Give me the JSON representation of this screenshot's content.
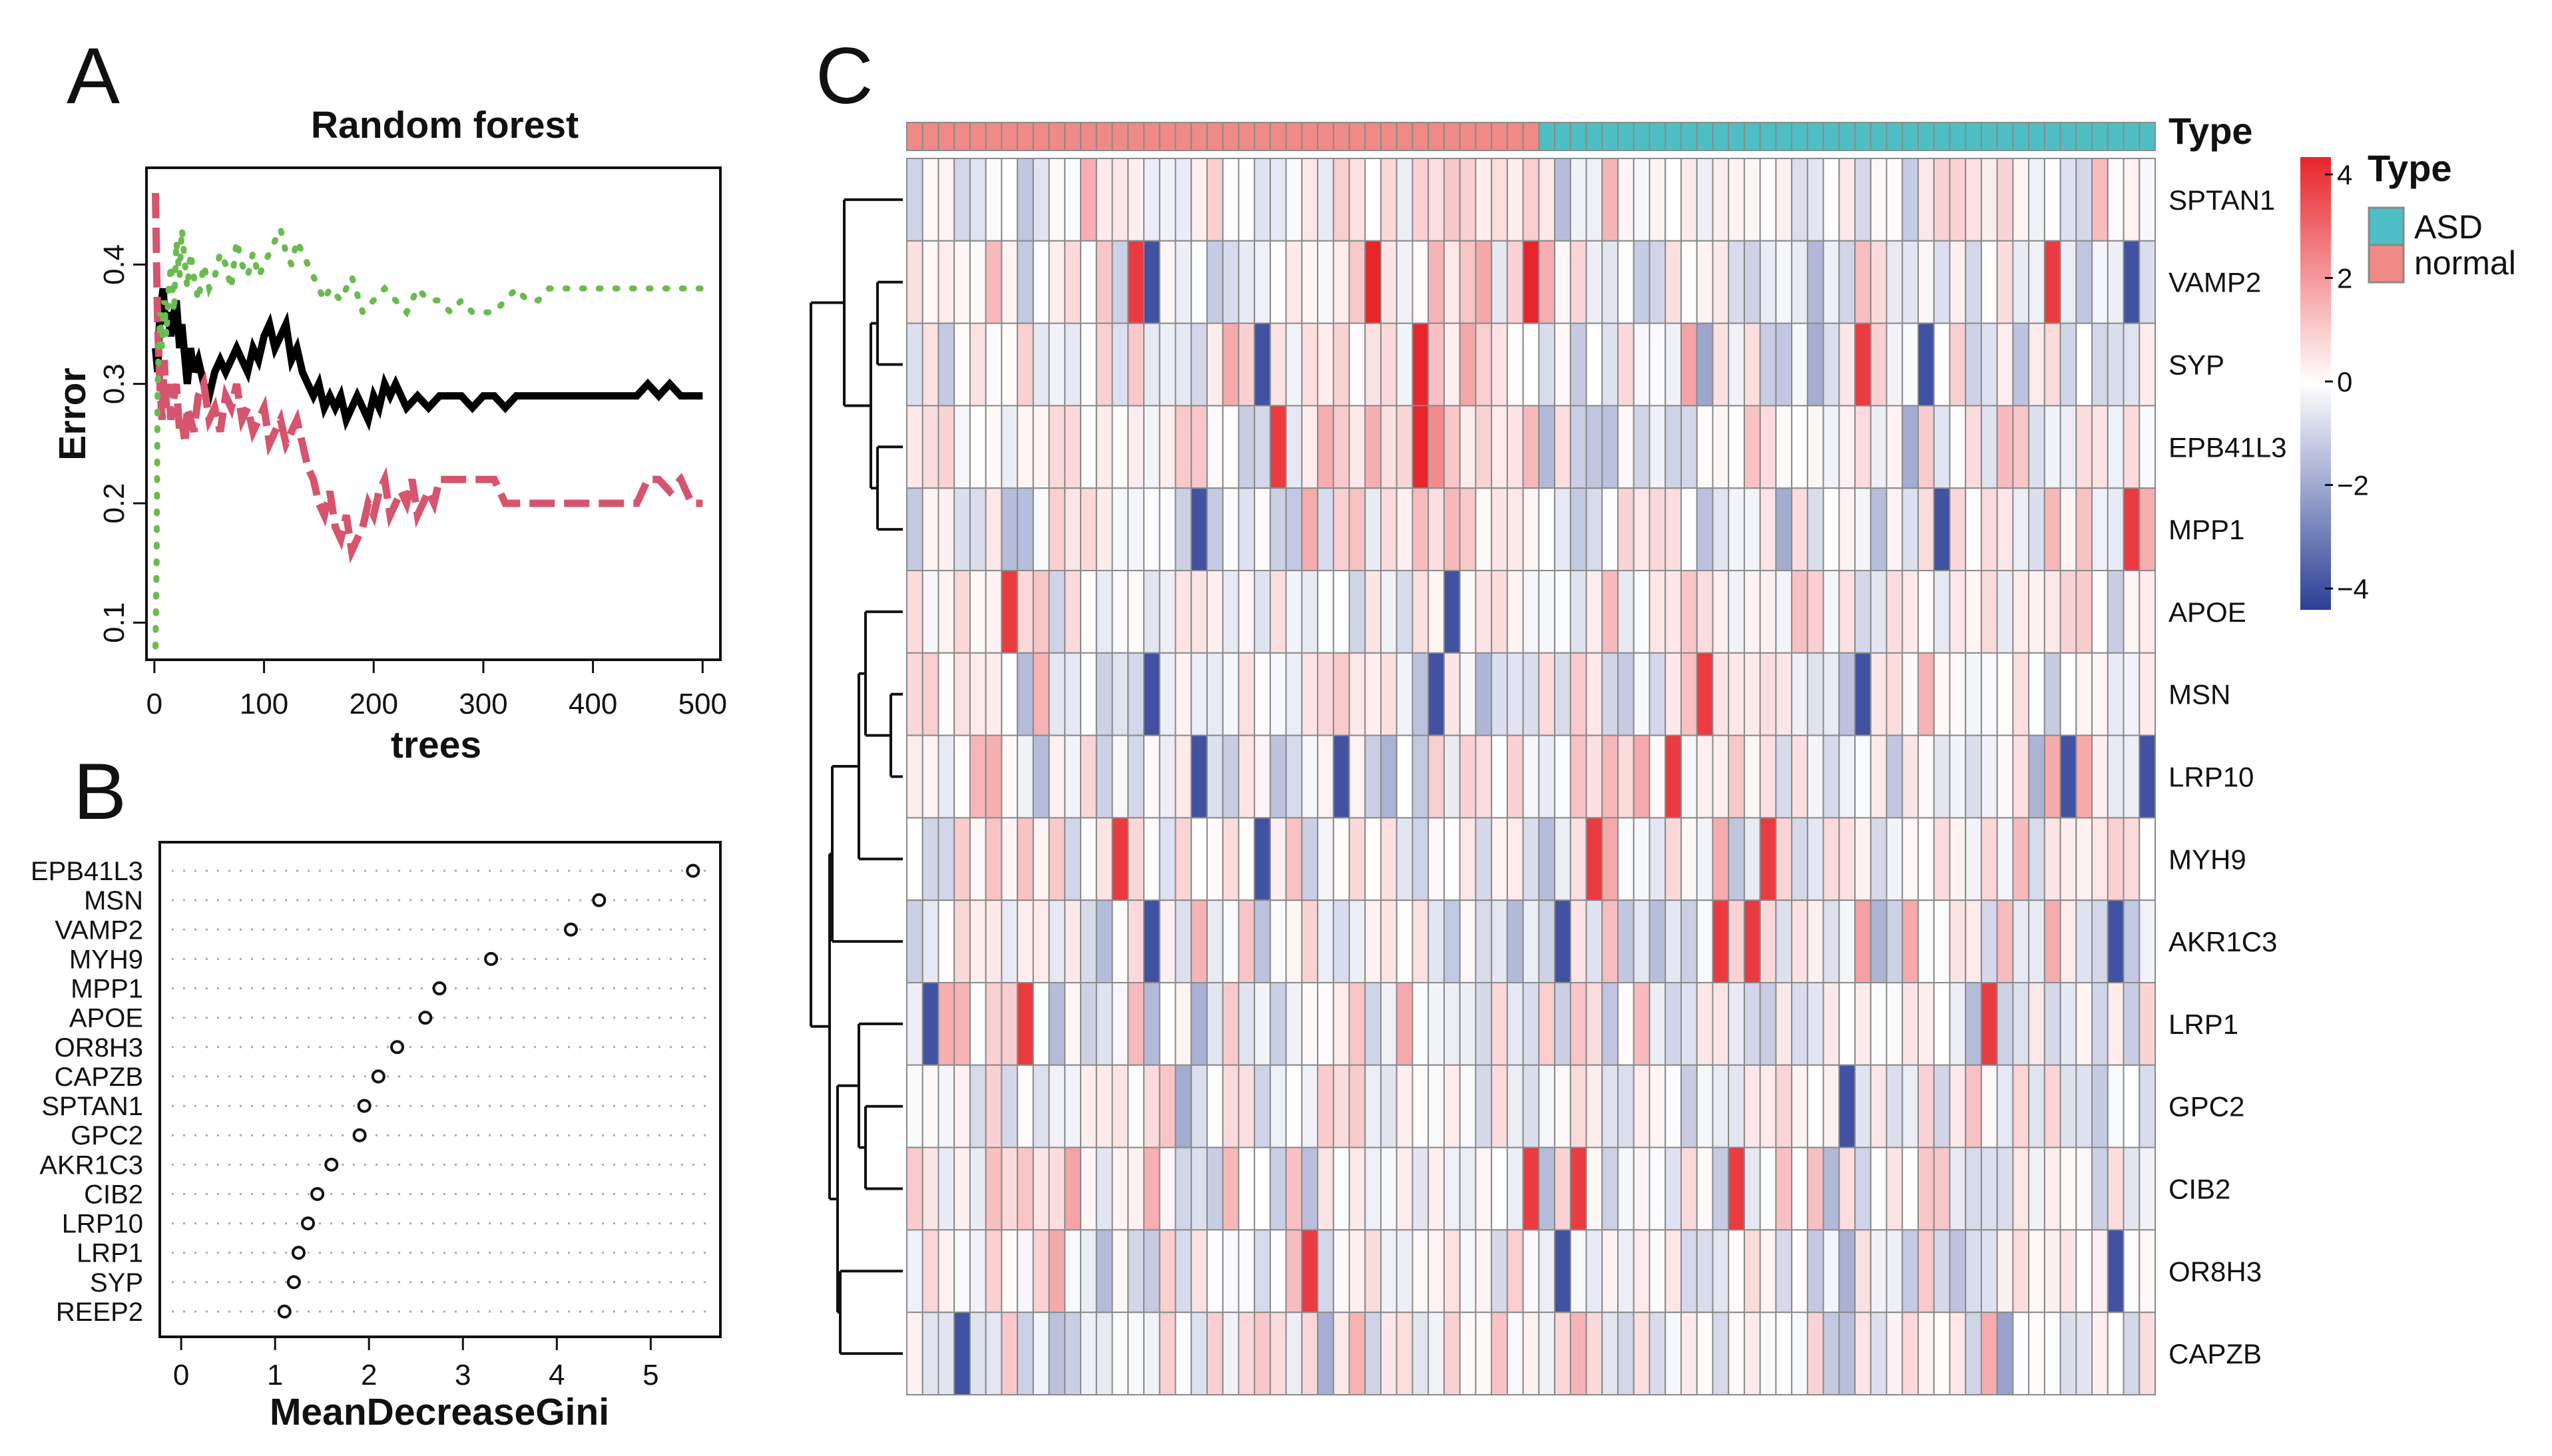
{
  "panels": {
    "A": "A",
    "B": "B",
    "C": "C"
  },
  "colors": {
    "oob": "#000000",
    "class1": "#d6546e",
    "class2": "#6abb4f",
    "asd": "#4dbfc4",
    "normal": "#ef8a86",
    "heat_low": "#2b3f96",
    "heat_mid": "#ffffff",
    "heat_high": "#e8252b"
  },
  "chart_data": [
    {
      "type": "line",
      "title": "Random forest",
      "xlabel": "trees",
      "ylabel": "Error",
      "xlim": [
        0,
        500
      ],
      "ylim": [
        0.07,
        0.48
      ],
      "xticks": [
        0,
        100,
        200,
        300,
        400,
        500
      ],
      "yticks": [
        0.1,
        0.2,
        0.3,
        0.4
      ],
      "series": [
        {
          "style": "solid",
          "color": "#000000",
          "x": [
            1,
            3,
            5,
            8,
            10,
            12,
            15,
            18,
            20,
            23,
            25,
            28,
            30,
            33,
            36,
            40,
            45,
            50,
            55,
            60,
            65,
            70,
            75,
            80,
            85,
            90,
            95,
            100,
            105,
            110,
            115,
            120,
            125,
            130,
            135,
            140,
            145,
            150,
            155,
            160,
            165,
            170,
            175,
            180,
            185,
            190,
            195,
            200,
            205,
            210,
            215,
            220,
            225,
            230,
            240,
            250,
            260,
            270,
            280,
            290,
            300,
            310,
            320,
            330,
            340,
            350,
            360,
            380,
            400,
            420,
            440,
            450,
            460,
            470,
            480,
            490,
            500
          ],
          "y": [
            0.33,
            0.31,
            0.36,
            0.38,
            0.35,
            0.36,
            0.34,
            0.36,
            0.37,
            0.33,
            0.35,
            0.32,
            0.3,
            0.33,
            0.31,
            0.32,
            0.3,
            0.29,
            0.31,
            0.32,
            0.31,
            0.32,
            0.33,
            0.32,
            0.31,
            0.33,
            0.32,
            0.34,
            0.35,
            0.33,
            0.34,
            0.35,
            0.32,
            0.33,
            0.31,
            0.3,
            0.29,
            0.3,
            0.28,
            0.29,
            0.28,
            0.29,
            0.27,
            0.28,
            0.29,
            0.28,
            0.27,
            0.29,
            0.28,
            0.3,
            0.29,
            0.3,
            0.29,
            0.28,
            0.29,
            0.28,
            0.29,
            0.29,
            0.29,
            0.28,
            0.29,
            0.29,
            0.28,
            0.29,
            0.29,
            0.29,
            0.29,
            0.29,
            0.29,
            0.29,
            0.29,
            0.3,
            0.29,
            0.3,
            0.29,
            0.29,
            0.29
          ]
        },
        {
          "style": "dashed",
          "color": "#d6546e",
          "x": [
            1,
            2,
            3,
            5,
            7,
            9,
            11,
            13,
            15,
            18,
            20,
            23,
            25,
            28,
            30,
            33,
            36,
            40,
            45,
            50,
            55,
            60,
            65,
            70,
            75,
            80,
            85,
            90,
            95,
            100,
            105,
            110,
            115,
            120,
            125,
            130,
            135,
            140,
            145,
            150,
            155,
            160,
            165,
            170,
            175,
            180,
            185,
            190,
            195,
            200,
            205,
            210,
            215,
            220,
            225,
            230,
            235,
            240,
            245,
            250,
            255,
            260,
            270,
            280,
            290,
            300,
            310,
            320,
            330,
            340,
            350,
            360,
            380,
            400,
            420,
            440,
            450,
            460,
            470,
            480,
            490,
            500
          ],
          "y": [
            0.46,
            0.4,
            0.35,
            0.3,
            0.27,
            0.32,
            0.28,
            0.3,
            0.27,
            0.29,
            0.3,
            0.26,
            0.27,
            0.25,
            0.28,
            0.27,
            0.26,
            0.29,
            0.3,
            0.27,
            0.28,
            0.26,
            0.29,
            0.28,
            0.3,
            0.27,
            0.28,
            0.26,
            0.27,
            0.28,
            0.25,
            0.26,
            0.27,
            0.25,
            0.26,
            0.27,
            0.25,
            0.23,
            0.22,
            0.2,
            0.19,
            0.21,
            0.18,
            0.17,
            0.19,
            0.16,
            0.17,
            0.18,
            0.2,
            0.19,
            0.21,
            0.22,
            0.19,
            0.2,
            0.21,
            0.2,
            0.22,
            0.19,
            0.2,
            0.21,
            0.2,
            0.22,
            0.22,
            0.22,
            0.22,
            0.22,
            0.22,
            0.2,
            0.2,
            0.2,
            0.2,
            0.2,
            0.2,
            0.2,
            0.2,
            0.2,
            0.22,
            0.22,
            0.21,
            0.22,
            0.2,
            0.2
          ]
        },
        {
          "style": "dotted",
          "color": "#6abb4f",
          "x": [
            1,
            2,
            3,
            5,
            7,
            9,
            11,
            13,
            15,
            18,
            20,
            23,
            25,
            28,
            30,
            33,
            36,
            40,
            45,
            50,
            55,
            60,
            65,
            70,
            75,
            80,
            85,
            90,
            95,
            100,
            105,
            110,
            115,
            120,
            125,
            130,
            135,
            140,
            145,
            150,
            155,
            160,
            170,
            180,
            190,
            200,
            210,
            220,
            230,
            240,
            250,
            260,
            270,
            280,
            290,
            300,
            310,
            320,
            330,
            340,
            350,
            360,
            380,
            400,
            420,
            440,
            460,
            480,
            500
          ],
          "y": [
            0.08,
            0.15,
            0.3,
            0.36,
            0.33,
            0.37,
            0.34,
            0.38,
            0.4,
            0.36,
            0.42,
            0.39,
            0.43,
            0.4,
            0.38,
            0.41,
            0.39,
            0.37,
            0.4,
            0.38,
            0.39,
            0.41,
            0.4,
            0.38,
            0.42,
            0.4,
            0.39,
            0.41,
            0.39,
            0.4,
            0.41,
            0.42,
            0.43,
            0.41,
            0.4,
            0.42,
            0.41,
            0.4,
            0.39,
            0.38,
            0.37,
            0.38,
            0.37,
            0.39,
            0.36,
            0.37,
            0.38,
            0.37,
            0.36,
            0.38,
            0.37,
            0.37,
            0.36,
            0.37,
            0.36,
            0.36,
            0.36,
            0.37,
            0.38,
            0.37,
            0.37,
            0.38,
            0.38,
            0.38,
            0.38,
            0.38,
            0.38,
            0.38,
            0.38
          ]
        }
      ]
    },
    {
      "type": "scatter",
      "xlabel": "MeanDecreaseGini",
      "xlim": [
        -0.1,
        5.6
      ],
      "xticks": [
        0,
        1,
        2,
        3,
        4,
        5
      ],
      "categories": [
        "EPB41L3",
        "MSN",
        "VAMP2",
        "MYH9",
        "MPP1",
        "APOE",
        "OR8H3",
        "CAPZB",
        "SPTAN1",
        "GPC2",
        "AKR1C3",
        "CIB2",
        "LRP10",
        "LRP1",
        "SYP",
        "REEP2"
      ],
      "values": [
        5.45,
        4.45,
        4.15,
        3.3,
        2.75,
        2.6,
        2.3,
        2.1,
        1.95,
        1.9,
        1.6,
        1.45,
        1.35,
        1.25,
        1.2,
        1.1
      ]
    },
    {
      "type": "heatmap",
      "rows": [
        "SPTAN1",
        "VAMP2",
        "SYP",
        "EPB41L3",
        "MPP1",
        "APOE",
        "MSN",
        "LRP10",
        "MYH9",
        "AKR1C3",
        "LRP1",
        "GPC2",
        "CIB2",
        "OR8H3",
        "CAPZB"
      ],
      "n_columns": 79,
      "n_normal": 40,
      "annotation_label": "Type",
      "legend": {
        "title": "Type",
        "entries": [
          "ASD",
          "normal"
        ],
        "colorbar_ticks": [
          4,
          2,
          0,
          -2,
          -4
        ]
      },
      "dendrogram_order": "SPTAN1,VAMP2,SYP,EPB41L3,MPP1 | APOE,MSN,LRP10,MYH9,AKR1C3 | LRP1,GPC2,CIB2 | OR8H3,CAPZB"
    }
  ]
}
